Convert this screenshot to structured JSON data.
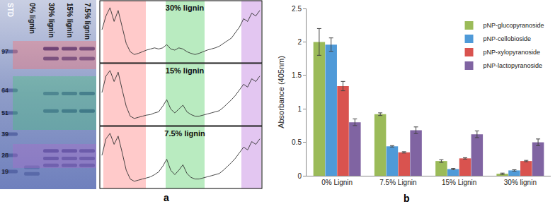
{
  "gel": {
    "panel_label": "a",
    "markers": [
      97,
      64,
      51,
      39,
      28,
      19
    ],
    "lanes": [
      {
        "label": "STD",
        "bands": [
          {
            "mw": 97,
            "intensity": 0.5
          },
          {
            "mw": 64,
            "intensity": 0.45
          },
          {
            "mw": 51,
            "intensity": 0.45
          },
          {
            "mw": 39,
            "intensity": 0.4
          },
          {
            "mw": 28,
            "intensity": 0.4
          },
          {
            "mw": 19,
            "intensity": 0.35
          }
        ]
      },
      {
        "label": "0% lignin",
        "bands": [
          {
            "mw": 21,
            "intensity": 0.25
          },
          {
            "mw": 18,
            "intensity": 0.3
          }
        ]
      },
      {
        "label": "30% lignin",
        "bands": [
          {
            "mw": 100,
            "intensity": 0.95
          },
          {
            "mw": 90,
            "intensity": 0.8
          },
          {
            "mw": 62,
            "intensity": 0.45
          },
          {
            "mw": 52,
            "intensity": 0.5
          },
          {
            "mw": 30,
            "intensity": 0.6
          },
          {
            "mw": 26,
            "intensity": 0.55
          },
          {
            "mw": 22,
            "intensity": 0.45
          }
        ]
      },
      {
        "label": "15% lignin",
        "bands": [
          {
            "mw": 100,
            "intensity": 0.9
          },
          {
            "mw": 90,
            "intensity": 0.75
          },
          {
            "mw": 62,
            "intensity": 0.5
          },
          {
            "mw": 52,
            "intensity": 0.55
          },
          {
            "mw": 30,
            "intensity": 0.6
          },
          {
            "mw": 26,
            "intensity": 0.5
          },
          {
            "mw": 22,
            "intensity": 0.45
          }
        ]
      },
      {
        "label": "7.5% lignin",
        "bands": [
          {
            "mw": 100,
            "intensity": 0.85
          },
          {
            "mw": 90,
            "intensity": 0.7
          },
          {
            "mw": 62,
            "intensity": 0.55
          },
          {
            "mw": 52,
            "intensity": 0.6
          },
          {
            "mw": 30,
            "intensity": 0.55
          },
          {
            "mw": 26,
            "intensity": 0.5
          },
          {
            "mw": 22,
            "intensity": 0.45
          }
        ]
      }
    ],
    "profiles": [
      {
        "label": "30% lignin",
        "values": [
          0.55,
          0.8,
          0.95,
          0.7,
          0.9,
          0.6,
          0.3,
          0.15,
          0.1,
          0.12,
          0.15,
          0.18,
          0.2,
          0.22,
          0.2,
          0.22,
          0.28,
          0.2,
          0.18,
          0.22,
          0.2,
          0.15,
          0.12,
          0.1,
          0.12,
          0.15,
          0.18,
          0.2,
          0.22,
          0.25,
          0.3,
          0.35,
          0.4,
          0.5,
          0.6,
          0.75,
          0.7,
          0.85,
          0.8,
          0.9
        ]
      },
      {
        "label": "15% lignin",
        "values": [
          0.55,
          0.85,
          0.95,
          0.75,
          0.92,
          0.6,
          0.3,
          0.12,
          0.08,
          0.1,
          0.12,
          0.14,
          0.15,
          0.18,
          0.2,
          0.3,
          0.42,
          0.25,
          0.18,
          0.25,
          0.32,
          0.2,
          0.15,
          0.12,
          0.12,
          0.14,
          0.16,
          0.18,
          0.2,
          0.22,
          0.28,
          0.35,
          0.42,
          0.5,
          0.6,
          0.7,
          0.65,
          0.8,
          0.75,
          0.85
        ]
      },
      {
        "label": "7.5% lignin",
        "values": [
          0.55,
          0.85,
          0.95,
          0.75,
          0.9,
          0.6,
          0.28,
          0.12,
          0.08,
          0.1,
          0.12,
          0.14,
          0.16,
          0.2,
          0.25,
          0.35,
          0.48,
          0.28,
          0.2,
          0.28,
          0.38,
          0.22,
          0.15,
          0.12,
          0.12,
          0.14,
          0.16,
          0.18,
          0.2,
          0.22,
          0.28,
          0.35,
          0.42,
          0.5,
          0.6,
          0.7,
          0.65,
          0.8,
          0.75,
          0.85
        ]
      }
    ]
  },
  "chart_data": {
    "type": "bar",
    "y_label": "Absorbance (405nm)",
    "annotations": [
      "b"
    ],
    "categories": [
      "0% Lignin",
      "7.5% Lignin",
      "15% Lignin",
      "30% lignin"
    ],
    "series": [
      {
        "name": "pNP-glucopyranoside",
        "color": "#9bbb59",
        "values": [
          2.0,
          0.92,
          0.22,
          0.03
        ],
        "errors": [
          0.2,
          0.02,
          0.02,
          0.01
        ]
      },
      {
        "name": "pNP-cellobioside",
        "color": "#4f9ad8",
        "values": [
          1.96,
          0.44,
          0.1,
          0.08
        ],
        "errors": [
          0.1,
          0.01,
          0.01,
          0.01
        ]
      },
      {
        "name": "pNP-xylopyranoside",
        "color": "#d9534f",
        "values": [
          1.34,
          0.35,
          0.26,
          0.22
        ],
        "errors": [
          0.07,
          0.01,
          0.01,
          0.01
        ]
      },
      {
        "name": "pNP-lactopyranoside",
        "color": "#8064a2",
        "values": [
          0.8,
          0.68,
          0.62,
          0.5
        ],
        "errors": [
          0.05,
          0.05,
          0.05,
          0.05
        ]
      }
    ],
    "ylim": [
      0,
      2.5
    ],
    "yticks": [
      0,
      0.5,
      1,
      1.5,
      2,
      2.5
    ],
    "grid": false,
    "legend": "top right"
  }
}
